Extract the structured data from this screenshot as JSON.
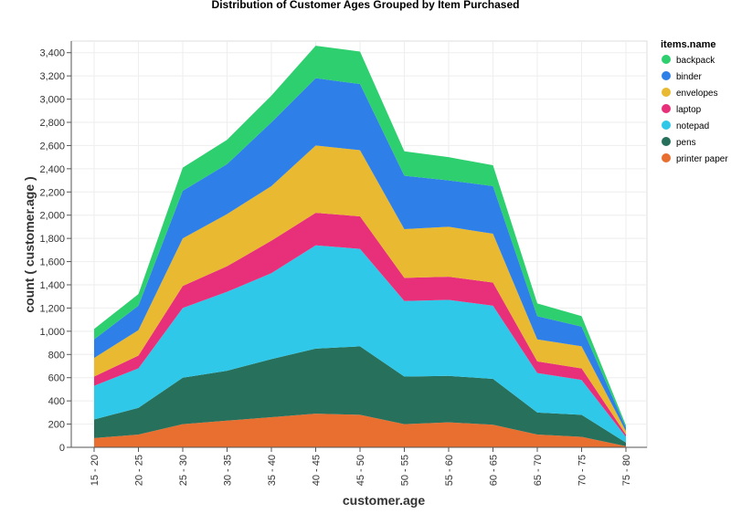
{
  "chart_data": {
    "type": "area",
    "stacked": true,
    "title": "Distribution of Customer Ages Grouped by Item Purchased",
    "xlabel": "customer.age",
    "ylabel": "count ( customer.age )",
    "ylim": [
      0,
      3500
    ],
    "yticks": [
      0,
      200,
      400,
      600,
      800,
      1000,
      1200,
      1400,
      1600,
      1800,
      2000,
      2200,
      2400,
      2600,
      2800,
      3000,
      3200,
      3400
    ],
    "ytick_labels": [
      "0",
      "200",
      "400",
      "600",
      "800",
      "1,000",
      "1,200",
      "1,400",
      "1,600",
      "1,800",
      "2,000",
      "2,200",
      "2,400",
      "2,600",
      "2,800",
      "3,000",
      "3,200",
      "3,400"
    ],
    "grid": true,
    "legend": {
      "title": "items.name",
      "placement": "right"
    },
    "categories": [
      "15 - 20",
      "20 - 25",
      "25 - 30",
      "30 - 35",
      "35 - 40",
      "40 - 45",
      "45 - 50",
      "50 - 55",
      "55 - 60",
      "60 - 65",
      "65 - 70",
      "70 - 75",
      "75 - 80"
    ],
    "series": [
      {
        "name": "backpack",
        "color": "#2ecf6e",
        "values": [
          90,
          100,
          200,
          210,
          230,
          280,
          280,
          210,
          200,
          180,
          110,
          90,
          20
        ]
      },
      {
        "name": "binder",
        "color": "#2e7fe8",
        "values": [
          160,
          210,
          410,
          430,
          550,
          580,
          570,
          460,
          400,
          410,
          200,
          170,
          30
        ]
      },
      {
        "name": "envelopes",
        "color": "#e8b931",
        "values": [
          160,
          220,
          410,
          450,
          470,
          580,
          570,
          420,
          430,
          420,
          190,
          190,
          30
        ]
      },
      {
        "name": "laptop",
        "color": "#e8307a",
        "values": [
          80,
          110,
          190,
          220,
          280,
          280,
          280,
          200,
          200,
          200,
          100,
          100,
          20
        ]
      },
      {
        "name": "notepad",
        "color": "#30c8e8",
        "values": [
          290,
          340,
          600,
          680,
          740,
          890,
          840,
          650,
          655,
          630,
          340,
          300,
          50
        ]
      },
      {
        "name": "pens",
        "color": "#27705b",
        "values": [
          160,
          230,
          400,
          430,
          500,
          560,
          590,
          410,
          400,
          395,
          190,
          190,
          30
        ]
      },
      {
        "name": "printer paper",
        "color": "#e86f30",
        "values": [
          80,
          110,
          200,
          230,
          260,
          290,
          280,
          200,
          215,
          195,
          110,
          90,
          10
        ]
      }
    ]
  }
}
